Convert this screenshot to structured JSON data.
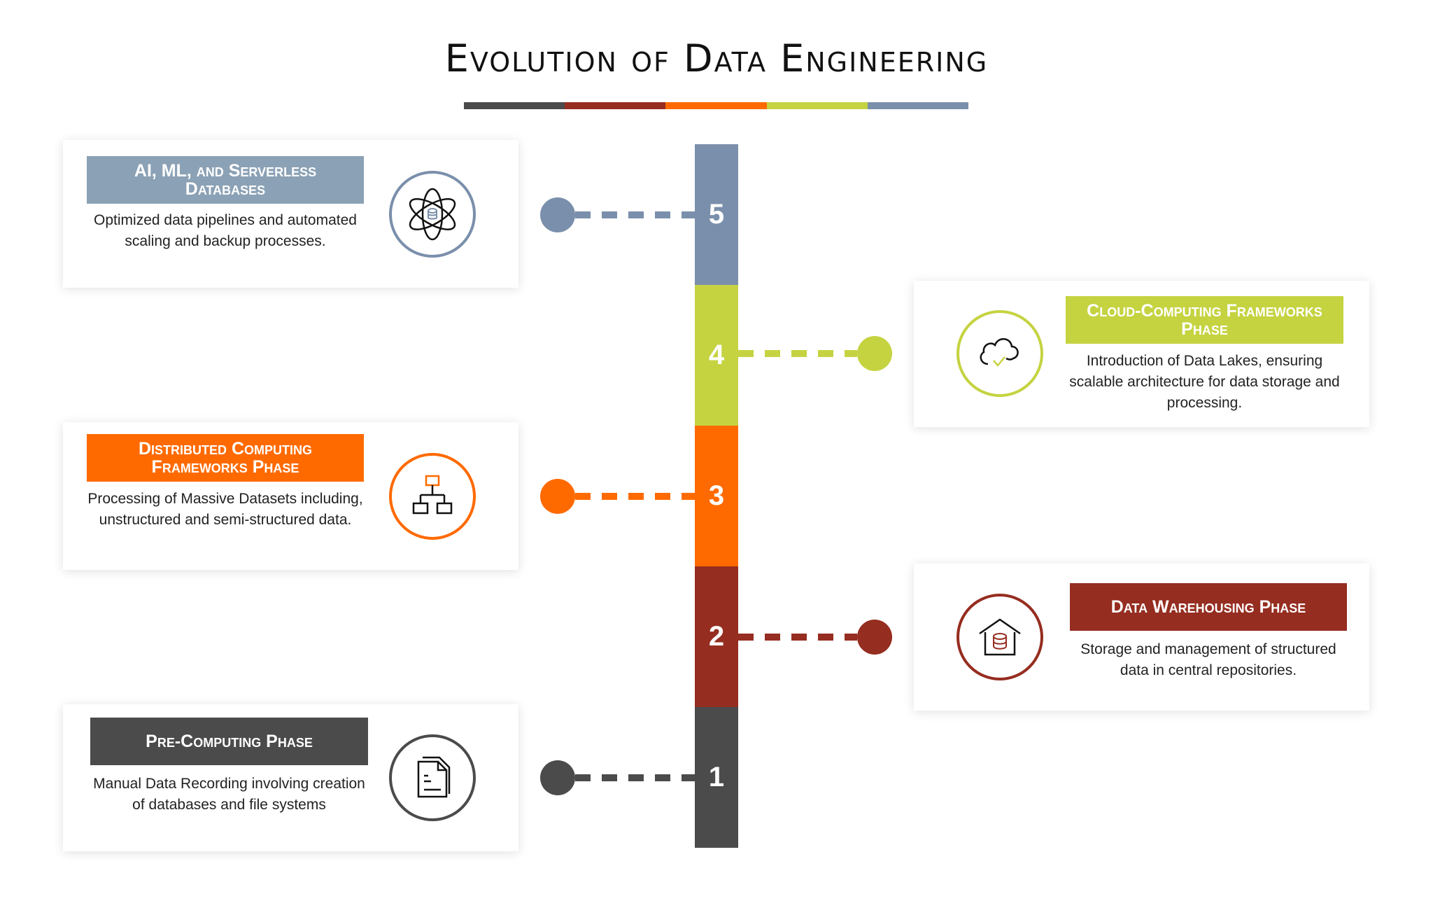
{
  "title": "Evolution of Data Engineering",
  "colors": {
    "phase1": "#4b4b4b",
    "phase2": "#952d20",
    "phase3": "#ff6a00",
    "phase4": "#c5d341",
    "phase5": "#7a8fab",
    "phase5_header": "#8ba1b5"
  },
  "phases": [
    {
      "number": "1",
      "title": "Pre-Computing Phase",
      "description": "Manual Data Recording involving creation of databases and file systems",
      "icon": "document-icon"
    },
    {
      "number": "2",
      "title": "Data Warehousing Phase",
      "description": "Storage and management of structured data in central repositories.",
      "icon": "warehouse-database-icon"
    },
    {
      "number": "3",
      "title": "Distributed Computing Frameworks Phase",
      "description": "Processing of Massive Datasets including, unstructured and semi-structured data.",
      "icon": "hierarchy-network-icon"
    },
    {
      "number": "4",
      "title": "Cloud-Computing Frameworks Phase",
      "description": "Introduction of Data Lakes, ensuring scalable architecture for data storage and processing.",
      "icon": "cloud-check-icon"
    },
    {
      "number": "5",
      "title": "AI, ML, and Serverless Databases",
      "description": "Optimized data pipelines and automated scaling and backup processes.",
      "icon": "atom-database-icon"
    }
  ]
}
